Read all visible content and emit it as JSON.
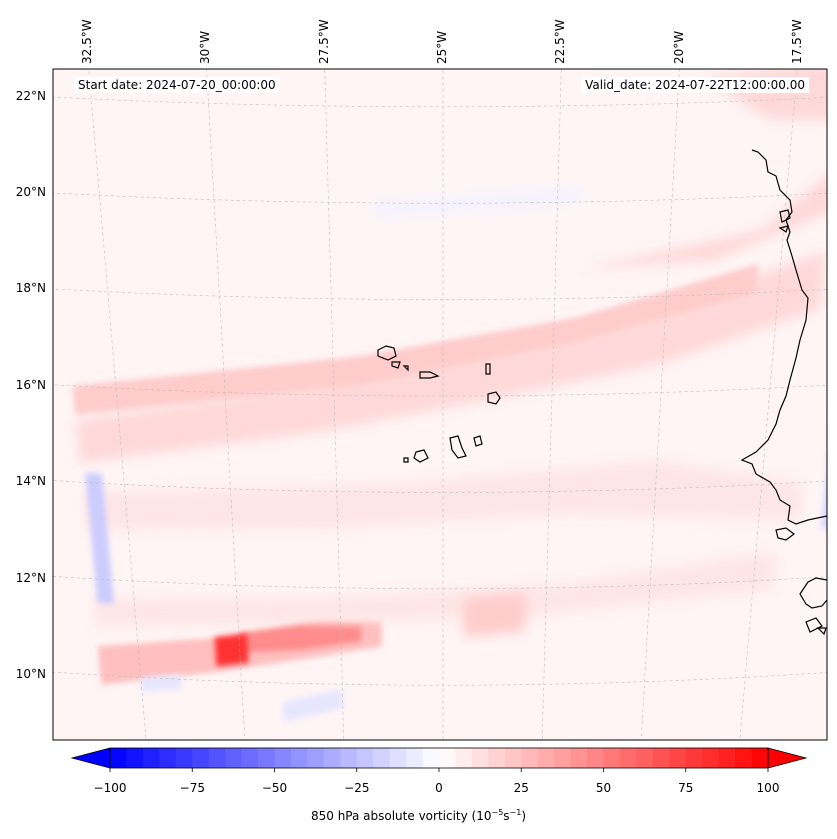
{
  "figure": {
    "start_date_text": "Start date: 2024-07-20_00:00:00",
    "valid_date_text": "Valid_date: 2024-07-22T12:00:00.00"
  },
  "map": {
    "region": "Eastern tropical Atlantic / Cabo Verde / West African coast",
    "lon_range": [
      -33.5,
      -15.5
    ],
    "lat_range": [
      8.8,
      22.8
    ],
    "lon_ticks": [
      {
        "value": -32.5,
        "label": "32.5°W"
      },
      {
        "value": -30,
        "label": "30°W"
      },
      {
        "value": -27.5,
        "label": "27.5°W"
      },
      {
        "value": -25,
        "label": "25°W"
      },
      {
        "value": -22.5,
        "label": "22.5°W"
      },
      {
        "value": -20,
        "label": "20°W"
      },
      {
        "value": -17.5,
        "label": "17.5°W"
      }
    ],
    "lat_ticks": [
      {
        "value": 22,
        "label": "22°N"
      },
      {
        "value": 20,
        "label": "20°N"
      },
      {
        "value": 18,
        "label": "18°N"
      },
      {
        "value": 16,
        "label": "16°N"
      },
      {
        "value": 14,
        "label": "14°N"
      },
      {
        "value": 12,
        "label": "12°N"
      },
      {
        "value": 10,
        "label": "10°N"
      }
    ],
    "features": [
      {
        "name": "vorticity-band-north",
        "desc": "ITCZ-like positive vorticity band running from ~16°N at 33°W to ~18.5°N at 17°W",
        "max_value": 20
      },
      {
        "name": "vorticity-max-southwest",
        "desc": "Local positive maximum near 10.5°N, 30°W",
        "max_value": 85
      },
      {
        "name": "vorticity-streak-southwest",
        "desc": "Positive streak extending ENE from the maximum toward 11°N, 27°W",
        "max_value": 50
      },
      {
        "name": "negative-strip-west",
        "desc": "Weak negative strip near 12.5°N, 33°W",
        "min_value": -20
      },
      {
        "name": "negative-strip-coast",
        "desc": "Weak negative strip offshore near 14.5°N, 16°W",
        "min_value": -15
      }
    ]
  },
  "colorbar": {
    "label_prefix": "850 hPa absolute vorticity (10",
    "label_exp1": "−5",
    "label_mid": "s",
    "label_exp2": "−1",
    "label_suffix": ")",
    "min": -100,
    "max": 100,
    "levels_step": 5,
    "extend": "both",
    "colormap": "bwr",
    "ticks": [
      {
        "value": -100,
        "label": "−100"
      },
      {
        "value": -75,
        "label": "−75"
      },
      {
        "value": -50,
        "label": "−50"
      },
      {
        "value": -25,
        "label": "−25"
      },
      {
        "value": 0,
        "label": "0"
      },
      {
        "value": 25,
        "label": "25"
      },
      {
        "value": 50,
        "label": "50"
      },
      {
        "value": 75,
        "label": "75"
      },
      {
        "value": 100,
        "label": "100"
      }
    ]
  }
}
